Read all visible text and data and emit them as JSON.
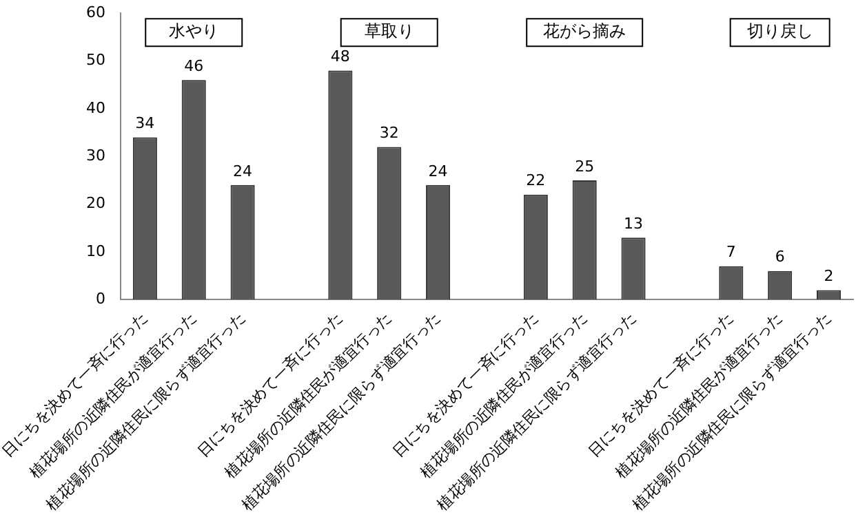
{
  "chart_data": {
    "type": "bar",
    "categories": [
      "日にちを決めて一斉に行った",
      "植花場所の近隣住民が適宜行った",
      "植花場所の近隣住民に限らず適宜行った",
      null,
      "日にちを決めて一斉に行った",
      "植花場所の近隣住民が適宜行った",
      "植花場所の近隣住民に限らず適宜行った",
      null,
      "日にちを決めて一斉に行った",
      "植花場所の近隣住民が適宜行った",
      "植花場所の近隣住民に限らず適宜行った",
      null,
      "日にちを決めて一斉に行った",
      "植花場所の近隣住民が適宜行った",
      "植花場所の近隣住民に限らず適宜行った"
    ],
    "values": [
      34,
      46,
      24,
      null,
      48,
      32,
      24,
      null,
      22,
      25,
      13,
      null,
      7,
      6,
      2
    ],
    "color": "#595959",
    "ylim": [
      0,
      60
    ],
    "yticks": [
      0,
      10,
      20,
      30,
      40,
      50,
      60
    ],
    "grid": false,
    "legend": false,
    "data_labels": true,
    "annotations": [
      "水やり",
      "草取り",
      "花がら摘み",
      "切り戻し"
    ]
  }
}
